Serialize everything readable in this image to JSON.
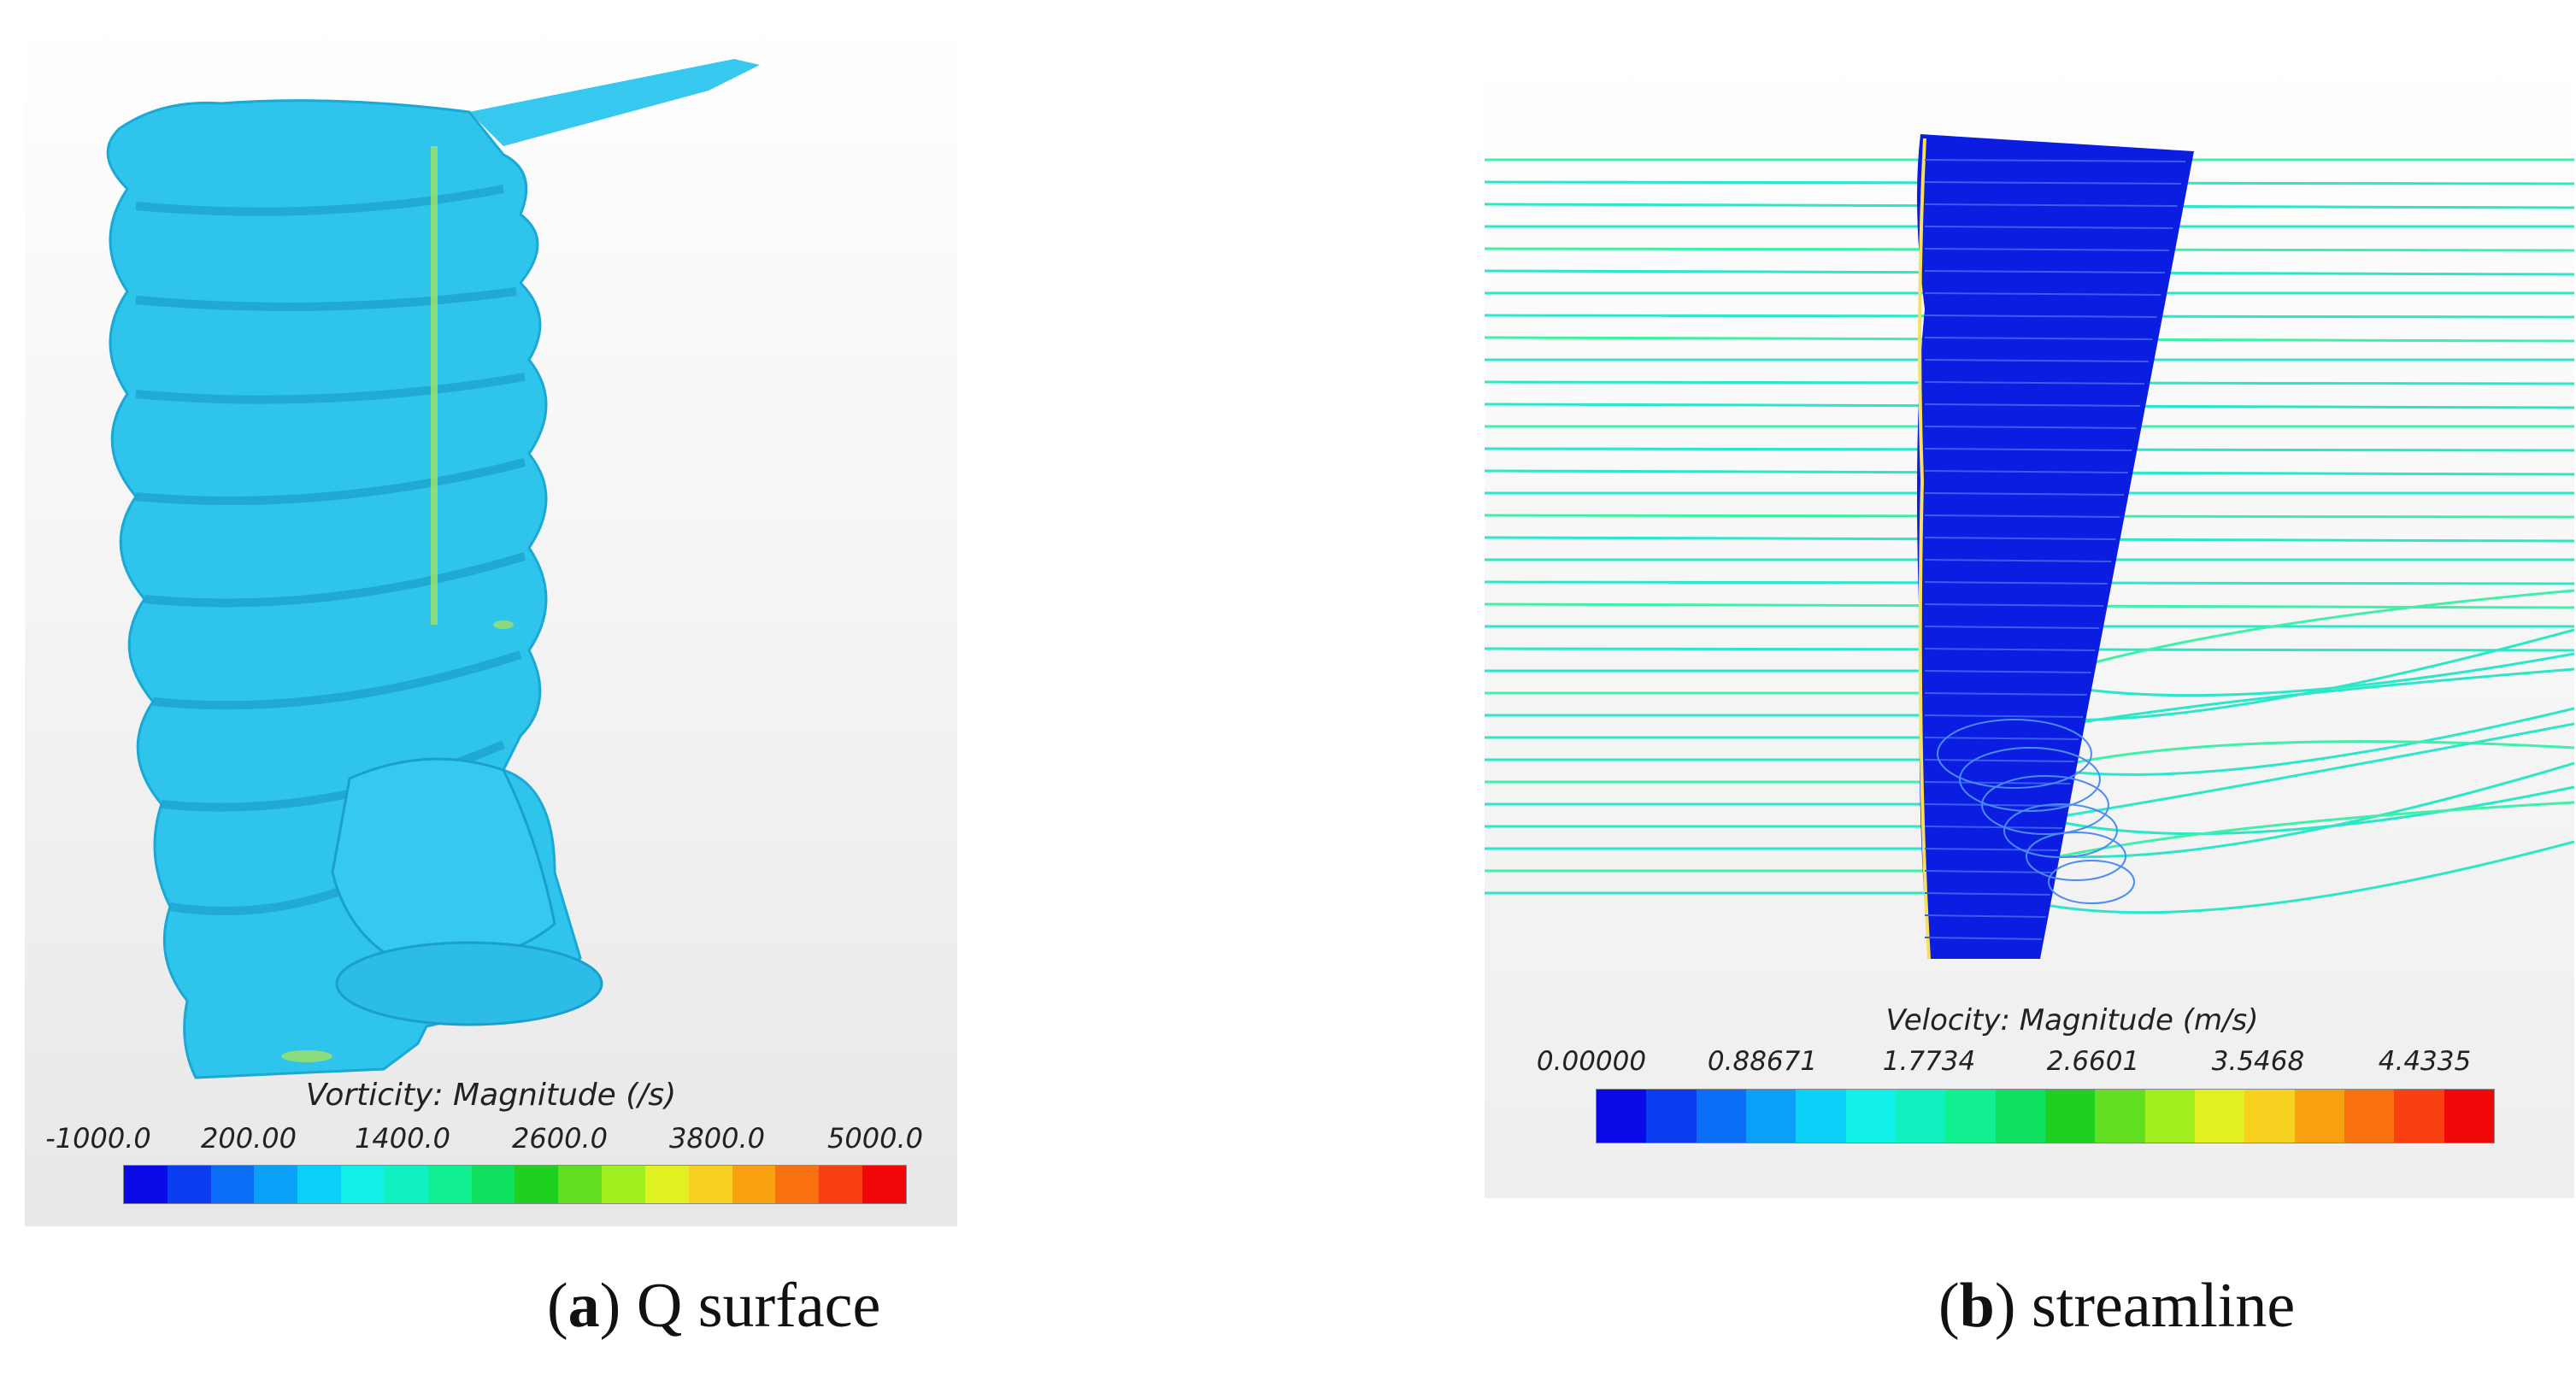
{
  "panels": [
    {
      "id": "a",
      "colorbar": {
        "title": "Vorticity: Magnitude (/s)",
        "ticks": [
          "-1000.0",
          "200.00",
          "1400.0",
          "2600.0",
          "3800.0",
          "5000.0"
        ]
      },
      "caption": {
        "letter": "a",
        "text": "Q surface"
      }
    },
    {
      "id": "b",
      "colorbar": {
        "title": "Velocity: Magnitude (m/s)",
        "ticks": [
          "0.00000",
          "0.88671",
          "1.7734",
          "2.6601",
          "3.5468",
          "4.4335"
        ]
      },
      "caption": {
        "letter": "b",
        "text": "streamline"
      }
    }
  ],
  "colors": {
    "surface": "#2ec4ec",
    "blade": "#0b1de0",
    "streamline": "#2be7c8",
    "panel_bg": "#f2f2f2",
    "colormap": [
      "#0a0ae8",
      "#0a3cf0",
      "#0a6ef6",
      "#0aa0f8",
      "#0ad0f8",
      "#10f0e8",
      "#10f0c0",
      "#10f090",
      "#10e060",
      "#20d020",
      "#60e020",
      "#a0f020",
      "#e0f020",
      "#f8d020",
      "#f8a010",
      "#f87010",
      "#f84010",
      "#f00808"
    ]
  }
}
